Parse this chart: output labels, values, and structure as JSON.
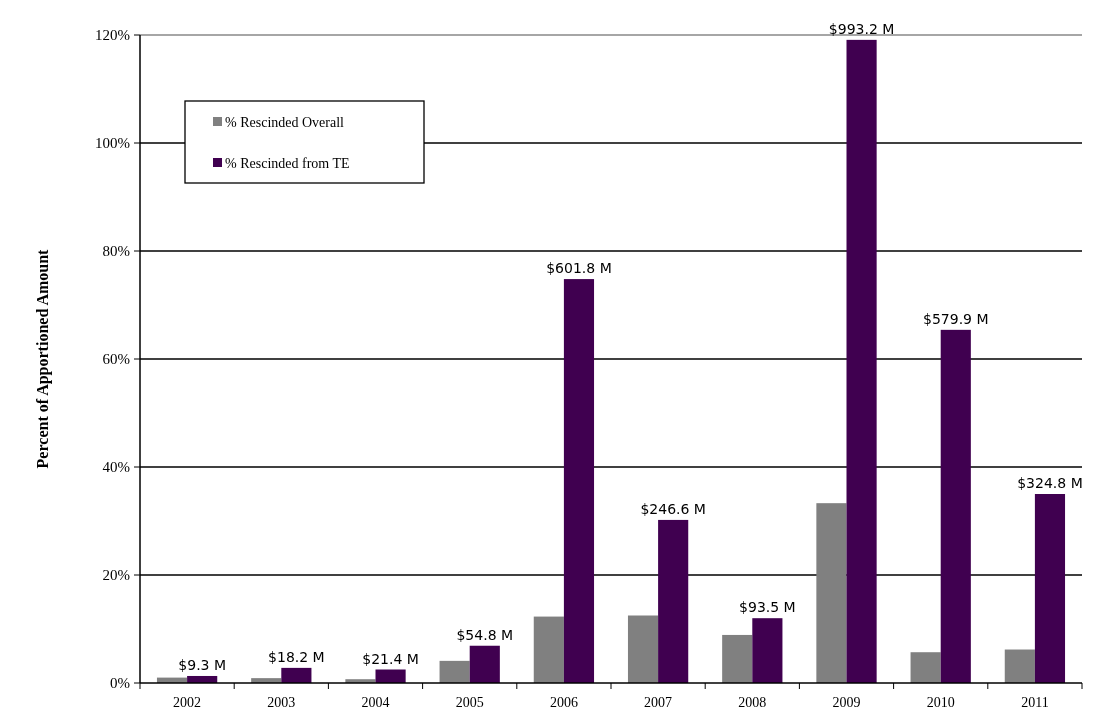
{
  "chart_data": {
    "type": "bar",
    "ylabel": "Percent of Apportioned Amount",
    "categories": [
      "2002",
      "2003",
      "2004",
      "2005",
      "2006",
      "2007",
      "2008",
      "2009",
      "2010",
      "2011"
    ],
    "series": [
      {
        "name": "% Rescinded Overall",
        "color": "#808080",
        "values": [
          1.0,
          0.9,
          0.7,
          4.1,
          12.3,
          12.5,
          8.9,
          33.3,
          5.7,
          6.2
        ]
      },
      {
        "name": "% Rescinded from TE",
        "color": "#400050",
        "values": [
          1.3,
          2.8,
          2.5,
          6.9,
          74.8,
          30.2,
          12.0,
          119.1,
          65.4,
          35.0
        ]
      }
    ],
    "annotations": [
      {
        "text": "$9.3 M",
        "x": "2002",
        "y": 1.3
      },
      {
        "text": "$18.2 M",
        "x": "2003",
        "y": 2.8
      },
      {
        "text": "$21.4 M",
        "x": "2004",
        "y": 2.5
      },
      {
        "text": "$54.8 M",
        "x": "2005",
        "y": 6.9
      },
      {
        "text": "$601.8 M",
        "x": "2006",
        "y": 74.8
      },
      {
        "text": "$246.6 M",
        "x": "2007",
        "y": 30.2
      },
      {
        "text": "$93.5 M",
        "x": "2008",
        "y": 12.0
      },
      {
        "text": "$993.2 M",
        "x": "2009",
        "y": 119.1
      },
      {
        "text": "$579.9 M",
        "x": "2010",
        "y": 65.4
      },
      {
        "text": "$324.8 M",
        "x": "2011",
        "y": 35.0
      }
    ],
    "ylim": [
      0,
      120
    ],
    "yticks": [
      {
        "value": 0,
        "label": "0%"
      },
      {
        "value": 20,
        "label": "20%"
      },
      {
        "value": 40,
        "label": "40%"
      },
      {
        "value": 60,
        "label": "60%"
      },
      {
        "value": 80,
        "label": "80%"
      },
      {
        "value": 100,
        "label": "100%"
      },
      {
        "value": 120,
        "label": "120%"
      }
    ],
    "grid": "y",
    "legend": "top left"
  }
}
